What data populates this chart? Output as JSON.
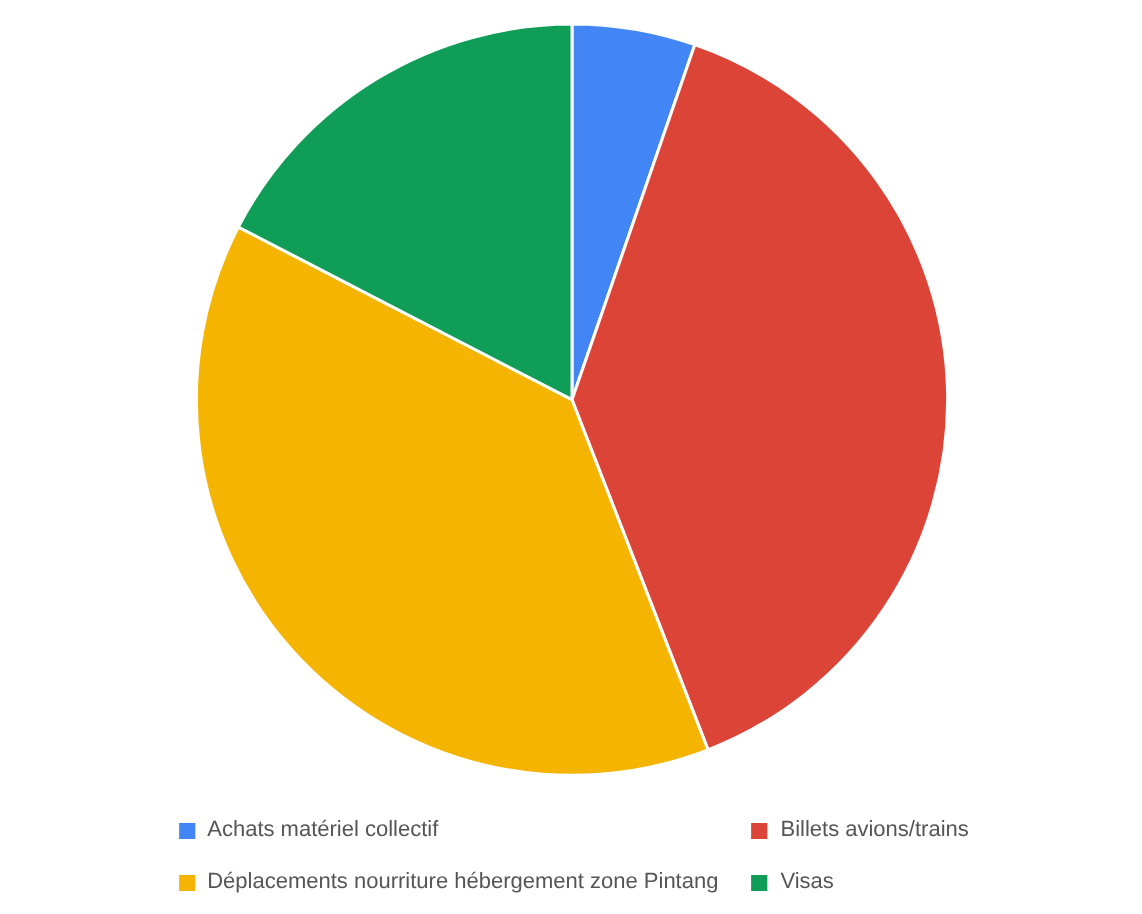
{
  "chart_data": {
    "type": "pie",
    "categories": [
      "Achats matériel collectif",
      "Billets avions/trains",
      "Déplacements nourriture hébergement zone Pintang",
      "Visas"
    ],
    "values": [
      5.3,
      38.8,
      38.5,
      17.4
    ],
    "colors": [
      "#4285f4",
      "#db4437",
      "#f4b400",
      "#0f9d58"
    ],
    "legend": "bottom"
  }
}
